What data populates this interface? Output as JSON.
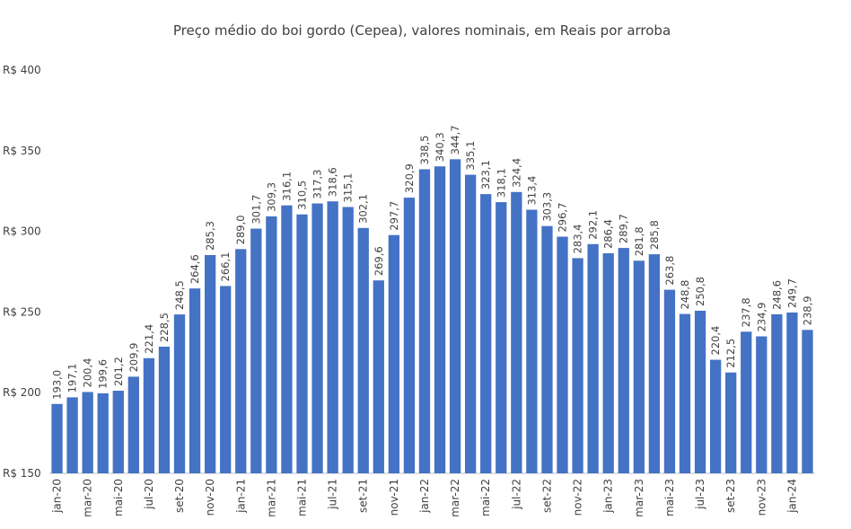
{
  "chart_data": {
    "type": "bar",
    "title": "Preço médio do boi gordo (Cepea), valores nominais, em Reais por arroba",
    "categories": [
      "jan-20",
      null,
      "mar-20",
      null,
      "mai-20",
      null,
      "jul-20",
      null,
      "set-20",
      null,
      "nov-20",
      null,
      "jan-21",
      null,
      "mar-21",
      null,
      "mai-21",
      null,
      "jul-21",
      null,
      "set-21",
      null,
      "nov-21",
      null,
      "jan-22",
      null,
      "mar-22",
      null,
      "mai-22",
      null,
      "jul-22",
      null,
      "set-22",
      null,
      "nov-22",
      null,
      "jan-23",
      null,
      "mar-23",
      null,
      "mai-23",
      null,
      "jul-23",
      null,
      "set-23",
      null,
      "nov-23",
      null,
      "jan-24",
      null
    ],
    "values": [
      193.0,
      197.1,
      200.4,
      199.6,
      201.2,
      209.9,
      221.4,
      228.5,
      248.5,
      264.6,
      285.3,
      266.1,
      289.0,
      301.7,
      309.3,
      316.1,
      310.5,
      317.3,
      318.6,
      315.1,
      302.1,
      269.6,
      297.7,
      320.9,
      338.5,
      340.3,
      344.7,
      335.1,
      323.1,
      318.1,
      324.4,
      313.4,
      303.3,
      296.7,
      283.4,
      292.1,
      286.4,
      289.7,
      281.8,
      285.8,
      263.8,
      248.8,
      250.8,
      220.4,
      212.5,
      237.8,
      234.9,
      248.6,
      249.7,
      238.9
    ],
    "value_labels": [
      "193,0",
      "197,1",
      "200,4",
      "199,6",
      "201,2",
      "209,9",
      "221,4",
      "228,5",
      "248,5",
      "264,6",
      "285,3",
      "266,1",
      "289,0",
      "301,7",
      "309,3",
      "316,1",
      "310,5",
      "317,3",
      "318,6",
      "315,1",
      "302,1",
      "269,6",
      "297,7",
      "320,9",
      "338,5",
      "340,3",
      "344,7",
      "335,1",
      "323,1",
      "318,1",
      "324,4",
      "313,4",
      "303,3",
      "296,7",
      "283,4",
      "292,1",
      "286,4",
      "289,7",
      "281,8",
      "285,8",
      "263,8",
      "248,8",
      "250,8",
      "220,4",
      "212,5",
      "237,8",
      "234,9",
      "248,6",
      "249,7",
      "238,9"
    ],
    "color": "#4472c4",
    "ylim": [
      150,
      400
    ],
    "yticks": [
      {
        "value": 150,
        "label": "R$ 150"
      },
      {
        "value": 200,
        "label": "R$ 200"
      },
      {
        "value": 250,
        "label": "R$ 250"
      },
      {
        "value": 300,
        "label": "R$ 300"
      },
      {
        "value": 350,
        "label": "R$ 350"
      },
      {
        "value": 400,
        "label": "R$ 400"
      }
    ],
    "grid": false
  }
}
